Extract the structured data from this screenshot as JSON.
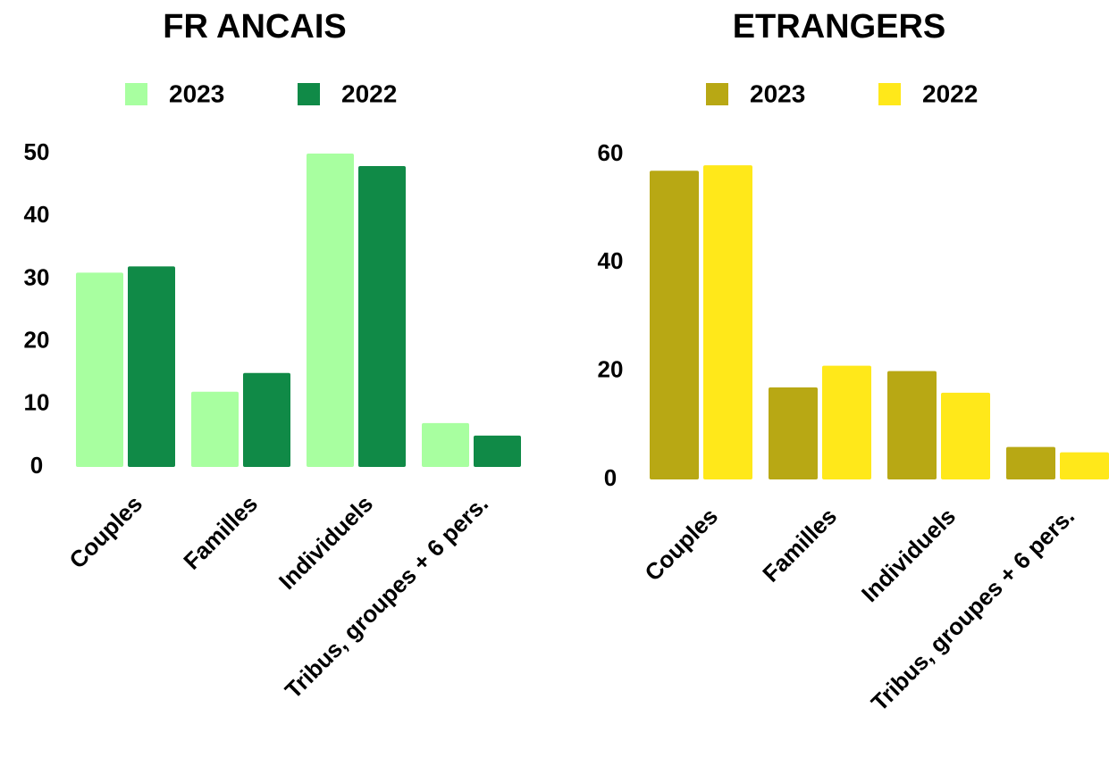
{
  "chart_data": [
    {
      "type": "bar",
      "title": "FR ANCAIS",
      "categories": [
        "Couples",
        "Familles",
        "Individuels",
        "Tribus, groupes + 6 pers."
      ],
      "series": [
        {
          "name": "2023",
          "color": "#a8ffa0",
          "values": [
            31,
            12,
            50,
            7
          ]
        },
        {
          "name": "2022",
          "color": "#108a47",
          "values": [
            32,
            15,
            48,
            5
          ]
        }
      ],
      "ylim": [
        0,
        50
      ],
      "yticks": [
        0,
        10,
        20,
        30,
        40,
        50
      ],
      "grid": false,
      "legend": "top"
    },
    {
      "type": "bar",
      "title": "ETRANGERS",
      "categories": [
        "Couples",
        "Familles",
        "Individuels",
        "Tribus, groupes + 6 pers."
      ],
      "series": [
        {
          "name": "2023",
          "color": "#b8a814",
          "values": [
            57,
            17,
            20,
            6
          ]
        },
        {
          "name": "2022",
          "color": "#ffe81a",
          "values": [
            58,
            21,
            16,
            5
          ]
        }
      ],
      "ylim": [
        0,
        60
      ],
      "yticks": [
        0,
        20,
        40,
        60
      ],
      "grid": false,
      "legend": "top"
    }
  ]
}
